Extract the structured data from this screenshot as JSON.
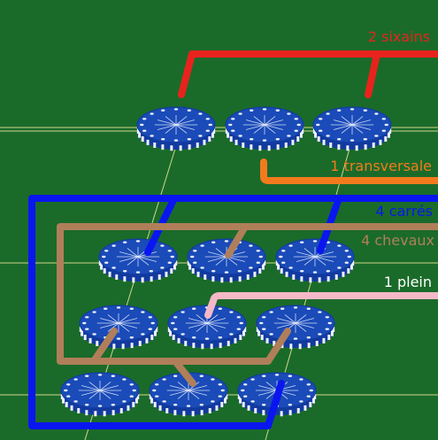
{
  "colors": {
    "felt": "#1a6b2a",
    "felt_line": "#d4d68a",
    "chip_blue": "#123a9e",
    "chip_face": "#1a4bb8",
    "chip_stripe": "#eef2ff",
    "sixains": "#e8231d",
    "transversale": "#f37a1c",
    "carres": "#0a16f0",
    "chevaux": "#b07f5a",
    "plein": "#f5b8c8"
  },
  "bets": {
    "sixains": {
      "label": "2 sixains"
    },
    "transversale": {
      "label": "1 transversale"
    },
    "carres": {
      "label": "4 carrés"
    },
    "chevaux": {
      "label": "4 chevaux"
    },
    "plein": {
      "label": "1 plein"
    }
  },
  "chip_rows": [
    {
      "row": "top",
      "count": 3
    },
    {
      "row": "upper",
      "count": 3
    },
    {
      "row": "middle",
      "count": 3
    },
    {
      "row": "bottom",
      "count": 3
    }
  ]
}
